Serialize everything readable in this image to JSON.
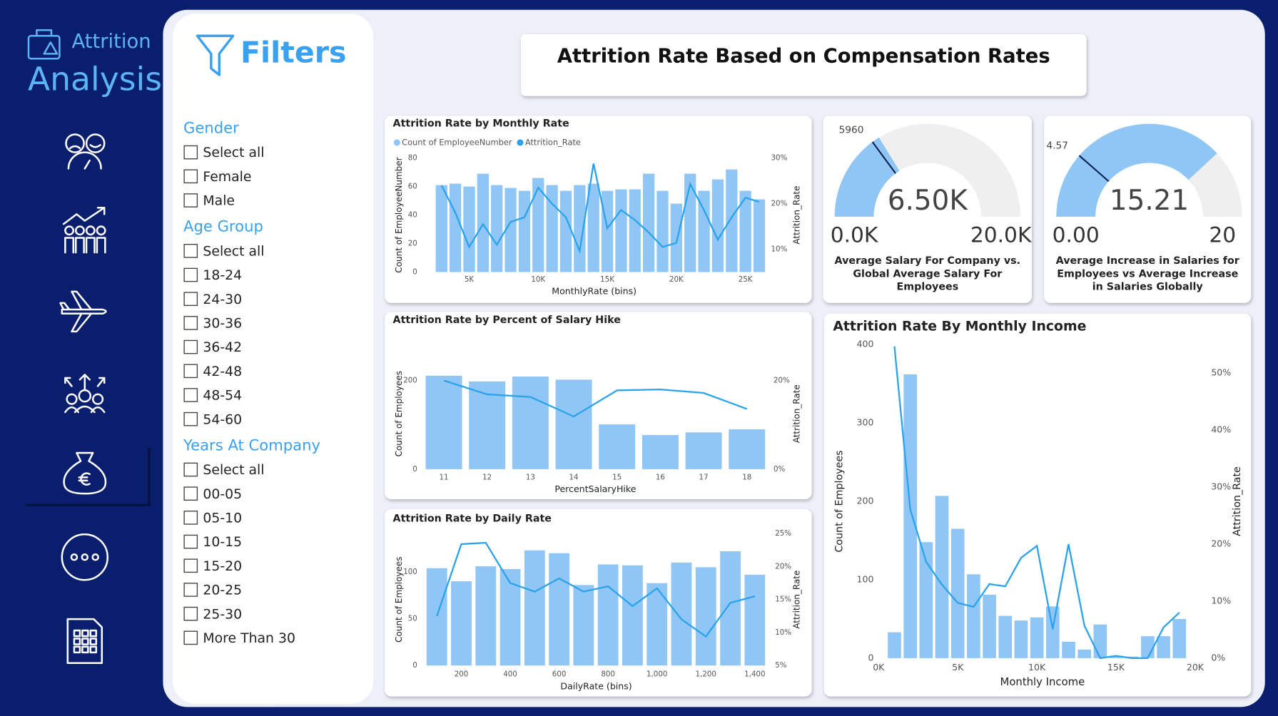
{
  "sidebar": {
    "brand_top": "Attrition",
    "brand_bottom": "Analysis"
  },
  "filters": {
    "title": "Filters",
    "groups": [
      {
        "title": "Gender",
        "options": [
          "Select all",
          "Female",
          "Male"
        ]
      },
      {
        "title": "Age Group",
        "options": [
          "Select all",
          "18-24",
          "24-30",
          "30-36",
          "36-42",
          "42-48",
          "48-54",
          "54-60"
        ]
      },
      {
        "title": "Years At Company",
        "options": [
          "Select all",
          "00-05",
          "05-10",
          "10-15",
          "15-20",
          "20-25",
          "25-30",
          "More Than 30"
        ]
      }
    ]
  },
  "header": {
    "title": "Attrition Rate Based on Compensation Rates"
  },
  "chart_data": [
    {
      "type": "combo",
      "title": "Attrition Rate by Monthly Rate",
      "legend": true,
      "x_label": "MonthlyRate (bins)",
      "y_label": "Count of EmployeeNumber",
      "y2_label": "Attrition_Rate",
      "x": [
        3000,
        4000,
        5000,
        6000,
        7000,
        8000,
        9000,
        10000,
        11000,
        12000,
        13000,
        14000,
        15000,
        16000,
        17000,
        18000,
        19000,
        20000,
        21000,
        22000,
        23000,
        24000,
        25000,
        26000
      ],
      "xlim": [
        1600,
        26500
      ],
      "xticks": [
        {
          "value": 5000,
          "label": "5K"
        },
        {
          "value": 10000,
          "label": "10K"
        },
        {
          "value": 15000,
          "label": "15K"
        },
        {
          "value": 20000,
          "label": "20K"
        },
        {
          "value": 25000,
          "label": "25K"
        }
      ],
      "ylim": [
        0,
        80
      ],
      "yticks": [
        0,
        20,
        40,
        60,
        80
      ],
      "y2lim": [
        5,
        30
      ],
      "y2ticks": [
        {
          "value": 10,
          "label": "10%"
        },
        {
          "value": 20,
          "label": "20%"
        },
        {
          "value": 30,
          "label": "30%"
        }
      ],
      "series": [
        {
          "name": "Count of EmployeeNumber",
          "type": "bar",
          "color": "#8fc6f5",
          "values": [
            61,
            62,
            60,
            69,
            61,
            59,
            57,
            66,
            61,
            57,
            61,
            62,
            57,
            58,
            58,
            69,
            57,
            48,
            69,
            57,
            65,
            72,
            57,
            51
          ]
        },
        {
          "name": "Attrition_Rate",
          "type": "line",
          "axis": "y2",
          "color": "#2aa3ea",
          "values": [
            24,
            18,
            10.5,
            15.5,
            11,
            16,
            17,
            23.5,
            20,
            17,
            9.6,
            28.8,
            14.6,
            18.6,
            16.4,
            13.7,
            10.5,
            11.4,
            24.3,
            18.6,
            12.1,
            17,
            21.3,
            20.4
          ]
        }
      ]
    },
    {
      "type": "combo",
      "title": "Attrition Rate by Percent of Salary Hike",
      "x_label": "PercentSalaryHike",
      "y_label": "Count of Employees",
      "y2_label": "Attrition_Rate",
      "categories": [
        "11",
        "12",
        "13",
        "14",
        "15",
        "16",
        "17",
        "18"
      ],
      "ylim": [
        0,
        250
      ],
      "yticks": [
        0,
        200
      ],
      "y2lim": [
        0,
        25
      ],
      "y2ticks": [
        {
          "value": 0,
          "label": "0%"
        },
        {
          "value": 20,
          "label": "20%"
        }
      ],
      "series": [
        {
          "name": "Count of Employees",
          "type": "bar",
          "color": "#8fc6f5",
          "values": [
            211,
            198,
            209,
            202,
            101,
            77,
            83,
            90
          ]
        },
        {
          "name": "Attrition_Rate",
          "type": "line",
          "axis": "y2",
          "color": "#2aa3ea",
          "values": [
            20,
            16.9,
            16.3,
            11.9,
            17.8,
            18,
            17.2,
            13.6
          ]
        }
      ]
    },
    {
      "type": "combo",
      "title": "Attrition Rate by Daily Rate",
      "x_label": "DailyRate (bins)",
      "y_label": "Count of Employees",
      "y2_label": "Attrition_Rate",
      "x": [
        100,
        200,
        300,
        400,
        500,
        600,
        700,
        800,
        900,
        1000,
        1100,
        1200,
        1300,
        1400
      ],
      "xlim": [
        40,
        1463
      ],
      "xticks": [
        200,
        400,
        600,
        800,
        {
          "value": 1000,
          "label": "1,000"
        },
        {
          "value": 1200,
          "label": "1,200"
        },
        {
          "value": 1400,
          "label": "1,400"
        }
      ],
      "ylim": [
        0,
        141
      ],
      "yticks": [
        0,
        50,
        100
      ],
      "y2lim": [
        5,
        25
      ],
      "y2ticks": [
        {
          "value": 5,
          "label": "5%"
        },
        {
          "value": 10,
          "label": "10%"
        },
        {
          "value": 15,
          "label": "15%"
        },
        {
          "value": 20,
          "label": "20%"
        },
        {
          "value": 25,
          "label": "25%"
        }
      ],
      "series": [
        {
          "name": "Count of Employees",
          "type": "bar",
          "color": "#8fc6f5",
          "values": [
            104,
            90,
            106,
            103,
            123,
            120,
            86,
            108,
            107,
            88,
            110,
            105,
            122,
            97
          ]
        },
        {
          "name": "Attrition_Rate",
          "type": "line",
          "axis": "y2",
          "color": "#2aa3ea",
          "values": [
            12.5,
            23.4,
            23.6,
            17.5,
            16.2,
            18.2,
            16.2,
            17,
            14,
            16.7,
            12,
            9.4,
            14.5,
            15.5
          ]
        }
      ]
    },
    {
      "type": "combo",
      "title": "Attrition Rate By Monthly Income",
      "x_label": "Monthly Income",
      "y_label": "Count of Employees",
      "y2_label": "Attrition_Rate",
      "x": [
        1000,
        2000,
        3000,
        4000,
        5000,
        6000,
        7000,
        8000,
        9000,
        10000,
        11000,
        12000,
        13000,
        14000,
        15000,
        16000,
        17000,
        18000,
        19000
      ],
      "xlim": [
        0,
        20700
      ],
      "xticks": [
        {
          "value": 0,
          "label": "0K"
        },
        {
          "value": 5000,
          "label": "5K"
        },
        {
          "value": 10000,
          "label": "10K"
        },
        {
          "value": 15000,
          "label": "15K"
        },
        {
          "value": 20000,
          "label": "20K"
        }
      ],
      "ylim": [
        0,
        400
      ],
      "yticks": [
        0,
        100,
        200,
        300,
        400
      ],
      "y2lim": [
        0,
        55
      ],
      "y2ticks": [
        {
          "value": 0,
          "label": "0%"
        },
        {
          "value": 10,
          "label": "10%"
        },
        {
          "value": 20,
          "label": "20%"
        },
        {
          "value": 30,
          "label": "30%"
        },
        {
          "value": 40,
          "label": "40%"
        },
        {
          "value": 50,
          "label": "50%"
        }
      ],
      "series": [
        {
          "name": "Count of Employees",
          "type": "bar",
          "color": "#8fc6f5",
          "values": [
            33,
            362,
            148,
            207,
            165,
            107,
            81,
            54,
            48,
            52,
            66,
            21,
            11,
            43,
            3,
            2,
            28,
            28,
            50
          ]
        },
        {
          "name": "Attrition_Rate",
          "type": "line",
          "axis": "y2",
          "color": "#2aa3ea",
          "values": [
            54.7,
            26.1,
            16.9,
            12.9,
            9.7,
            9,
            13,
            12.6,
            17.6,
            19.7,
            5.1,
            20,
            5.7,
            0,
            0.4,
            0,
            0,
            5.4,
            8
          ]
        }
      ]
    },
    {
      "type": "gauge",
      "title": "Average Salary For Company vs. Global Average Salary For Employees",
      "value": 6500,
      "value_label": "6.50K",
      "target": 5960,
      "range": [
        0,
        20000
      ],
      "ticks": [
        {
          "value": 0,
          "label": "0.0K"
        },
        {
          "value": 20000,
          "label": "20.0K"
        }
      ],
      "color": "#8fc6f5"
    },
    {
      "type": "gauge",
      "title": "Average Increase in Salaries for Employees vs Average Increase in Salaries Globally",
      "value": 15.21,
      "target": 4.57,
      "range": [
        0,
        20
      ],
      "ticks": [
        {
          "value": 0,
          "label": "0.00"
        },
        20
      ],
      "color": "#8fc6f5"
    }
  ]
}
